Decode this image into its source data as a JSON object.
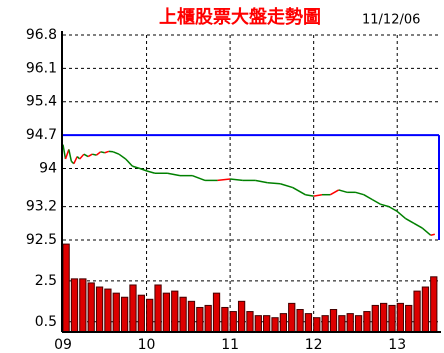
{
  "chart_data": {
    "type": "line",
    "title": "上櫃股票大盤走勢圖",
    "subtitle": "11/12/06",
    "xlim": [
      9,
      13.5
    ],
    "xticks": [
      {
        "value": 9,
        "label": "09"
      },
      {
        "value": 10,
        "label": "10"
      },
      {
        "value": 11,
        "label": "11"
      },
      {
        "value": 12,
        "label": "12"
      },
      {
        "value": 13,
        "label": "13"
      }
    ],
    "ylim": [
      92.5,
      96.8
    ],
    "yticks": [
      96.8,
      96.1,
      95.4,
      94.7,
      94,
      93.2,
      92.5
    ],
    "reference_level": 94.7,
    "reference_color": "#0000ff",
    "up_color": "#ff0000",
    "down_color": "#008000",
    "grid": true,
    "x": [
      9.0,
      9.03,
      9.07,
      9.1,
      9.13,
      9.17,
      9.2,
      9.25,
      9.3,
      9.35,
      9.4,
      9.45,
      9.5,
      9.55,
      9.6,
      9.67,
      9.75,
      9.83,
      9.92,
      10.0,
      10.1,
      10.25,
      10.4,
      10.55,
      10.7,
      10.85,
      11.0,
      11.15,
      11.3,
      11.45,
      11.6,
      11.75,
      11.9,
      12.0,
      12.1,
      12.2,
      12.3,
      12.4,
      12.5,
      12.6,
      12.7,
      12.8,
      12.9,
      13.0,
      13.1,
      13.2,
      13.3,
      13.4,
      13.45
    ],
    "values": [
      94.5,
      94.2,
      94.4,
      94.15,
      94.1,
      94.25,
      94.2,
      94.3,
      94.25,
      94.3,
      94.28,
      94.35,
      94.33,
      94.36,
      94.35,
      94.3,
      94.2,
      94.05,
      94.0,
      93.95,
      93.9,
      93.9,
      93.85,
      93.85,
      93.75,
      93.75,
      93.78,
      93.75,
      93.75,
      93.7,
      93.68,
      93.6,
      93.45,
      93.42,
      93.45,
      93.45,
      93.55,
      93.5,
      93.5,
      93.45,
      93.35,
      93.25,
      93.2,
      93.1,
      92.95,
      92.85,
      92.75,
      92.6,
      92.62
    ],
    "volume": {
      "type": "bar",
      "color": "#dd0000",
      "ylim": [
        0,
        4.5
      ],
      "yticks": [
        2.5,
        0.5
      ],
      "x": [
        9.0,
        9.1,
        9.2,
        9.3,
        9.4,
        9.5,
        9.6,
        9.7,
        9.8,
        9.9,
        10.0,
        10.1,
        10.2,
        10.3,
        10.4,
        10.5,
        10.6,
        10.7,
        10.8,
        10.9,
        11.0,
        11.1,
        11.2,
        11.3,
        11.4,
        11.5,
        11.6,
        11.7,
        11.8,
        11.9,
        12.0,
        12.1,
        12.2,
        12.3,
        12.4,
        12.5,
        12.6,
        12.7,
        12.8,
        12.9,
        13.0,
        13.1,
        13.2,
        13.3,
        13.4
      ],
      "values": [
        4.3,
        2.6,
        2.6,
        2.4,
        2.2,
        2.1,
        1.9,
        1.7,
        2.3,
        1.8,
        1.6,
        2.3,
        1.9,
        2.0,
        1.7,
        1.5,
        1.2,
        1.3,
        1.9,
        1.2,
        1.0,
        1.5,
        1.0,
        0.8,
        0.8,
        0.7,
        0.9,
        1.4,
        1.1,
        0.9,
        0.7,
        0.8,
        1.1,
        0.8,
        0.9,
        0.8,
        1.0,
        1.3,
        1.4,
        1.3,
        1.4,
        1.3,
        2.0,
        2.2,
        2.7
      ]
    }
  }
}
